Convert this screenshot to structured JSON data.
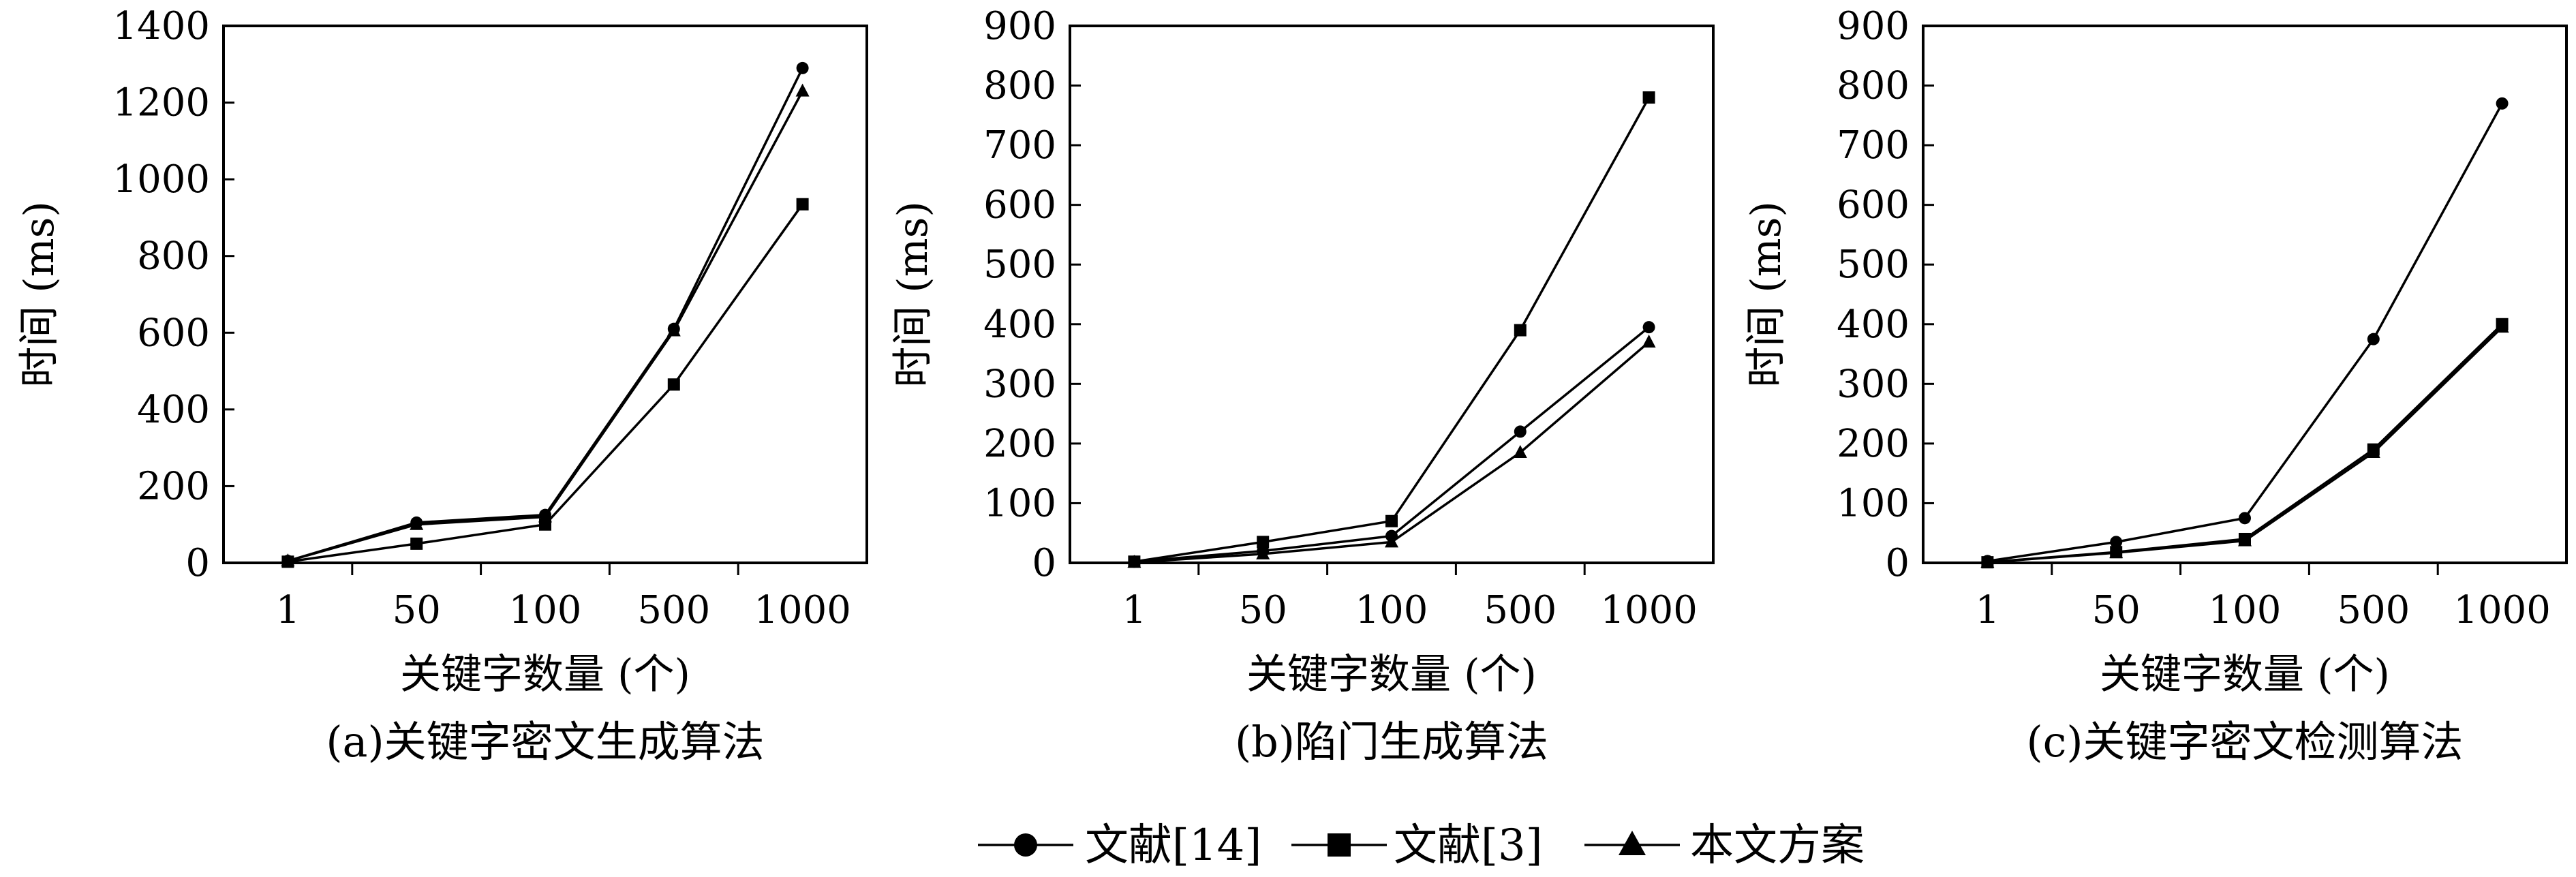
{
  "chart_data": [
    {
      "type": "line",
      "caption": "(a)关键字密文生成算法",
      "xlabel": "关键字数量 (个)",
      "ylabel": "时间 (ms)",
      "categories": [
        "1",
        "50",
        "100",
        "500",
        "1000"
      ],
      "ylim": [
        0,
        1400
      ],
      "yticks": [
        "0",
        "200",
        "400",
        "600",
        "800",
        "1000",
        "1200",
        "1400"
      ],
      "grid": false,
      "series": [
        {
          "name": "文献[14]",
          "marker": "circle",
          "values": [
            5,
            105,
            125,
            610,
            1290
          ]
        },
        {
          "name": "文献[3]",
          "marker": "square",
          "values": [
            3,
            50,
            100,
            465,
            935
          ]
        },
        {
          "name": "本文方案",
          "marker": "triangle",
          "values": [
            5,
            100,
            120,
            605,
            1230
          ]
        }
      ]
    },
    {
      "type": "line",
      "caption": "(b)陷门生成算法",
      "xlabel": "关键字数量 (个)",
      "ylabel": "时间 (ms)",
      "categories": [
        "1",
        "50",
        "100",
        "500",
        "1000"
      ],
      "ylim": [
        0,
        900
      ],
      "yticks": [
        "0",
        "100",
        "200",
        "300",
        "400",
        "500",
        "600",
        "700",
        "800",
        "900"
      ],
      "grid": false,
      "series": [
        {
          "name": "文献[14]",
          "marker": "circle",
          "values": [
            2,
            20,
            45,
            220,
            395
          ]
        },
        {
          "name": "文献[3]",
          "marker": "square",
          "values": [
            2,
            35,
            70,
            390,
            780
          ]
        },
        {
          "name": "本文方案",
          "marker": "triangle",
          "values": [
            1,
            15,
            35,
            185,
            370
          ]
        }
      ]
    },
    {
      "type": "line",
      "caption": "(c)关键字密文检测算法",
      "xlabel": "关键字数量 (个)",
      "ylabel": "时间 (ms)",
      "categories": [
        "1",
        "50",
        "100",
        "500",
        "1000"
      ],
      "ylim": [
        0,
        900
      ],
      "yticks": [
        "0",
        "100",
        "200",
        "300",
        "400",
        "500",
        "600",
        "700",
        "800",
        "900"
      ],
      "grid": false,
      "series": [
        {
          "name": "文献[14]",
          "marker": "circle",
          "values": [
            3,
            35,
            75,
            375,
            770
          ]
        },
        {
          "name": "文献[3]",
          "marker": "square",
          "values": [
            1,
            18,
            40,
            190,
            400
          ]
        },
        {
          "name": "本文方案",
          "marker": "triangle",
          "values": [
            1,
            17,
            37,
            185,
            395
          ]
        }
      ]
    }
  ],
  "legend": {
    "position": "bottom-center",
    "items": [
      {
        "label": "文献[14]",
        "marker": "circle"
      },
      {
        "label": "文献[3]",
        "marker": "square"
      },
      {
        "label": "本文方案",
        "marker": "triangle"
      }
    ]
  },
  "colors": {
    "line": "#000000",
    "background": "#ffffff"
  }
}
